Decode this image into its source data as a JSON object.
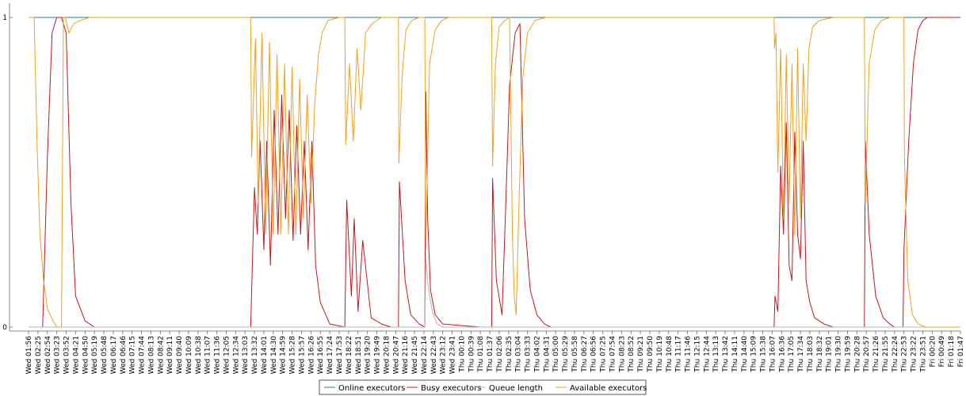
{
  "chart_data": {
    "type": "line",
    "title": "",
    "xlabel": "",
    "ylabel": "",
    "ylim": [
      0,
      1
    ],
    "yticks": [
      "0",
      "1"
    ],
    "grid": false,
    "legend_position": "bottom-center",
    "x_ticks": [
      "Wed 01:56",
      "Wed 02:25",
      "Wed 02:54",
      "Wed 03:23",
      "Wed 03:52",
      "Wed 04:21",
      "Wed 04:50",
      "Wed 05:19",
      "Wed 05:48",
      "Wed 06:17",
      "Wed 06:46",
      "Wed 07:15",
      "Wed 07:44",
      "Wed 08:13",
      "Wed 08:42",
      "Wed 09:11",
      "Wed 09:40",
      "Wed 10:09",
      "Wed 10:38",
      "Wed 11:07",
      "Wed 11:36",
      "Wed 12:05",
      "Wed 12:34",
      "Wed 13:03",
      "Wed 13:32",
      "Wed 14:01",
      "Wed 14:30",
      "Wed 14:59",
      "Wed 15:28",
      "Wed 15:57",
      "Wed 16:26",
      "Wed 16:55",
      "Wed 17:24",
      "Wed 17:53",
      "Wed 18:22",
      "Wed 18:51",
      "Wed 19:20",
      "Wed 19:49",
      "Wed 20:18",
      "Wed 20:47",
      "Wed 21:16",
      "Wed 21:45",
      "Wed 22:14",
      "Wed 22:43",
      "Wed 23:12",
      "Wed 23:41",
      "Thu 00:10",
      "Thu 00:39",
      "Thu 01:08",
      "Thu 01:37",
      "Thu 02:06",
      "Thu 02:35",
      "Thu 03:04",
      "Thu 03:33",
      "Thu 04:02",
      "Thu 04:31",
      "Thu 05:00",
      "Thu 05:29",
      "Thu 05:58",
      "Thu 06:27",
      "Thu 06:56",
      "Thu 07:25",
      "Thu 07:54",
      "Thu 08:23",
      "Thu 08:52",
      "Thu 09:21",
      "Thu 09:50",
      "Thu 10:19",
      "Thu 10:48",
      "Thu 11:17",
      "Thu 11:46",
      "Thu 12:15",
      "Thu 12:44",
      "Thu 13:13",
      "Thu 13:42",
      "Thu 14:11",
      "Thu 14:40",
      "Thu 15:09",
      "Thu 15:38",
      "Thu 16:07",
      "Thu 16:36",
      "Thu 17:05",
      "Thu 17:34",
      "Thu 18:03",
      "Thu 18:32",
      "Thu 19:01",
      "Thu 19:30",
      "Thu 19:59",
      "Thu 20:28",
      "Thu 20:57",
      "Thu 21:26",
      "Thu 21:55",
      "Thu 22:24",
      "Thu 22:53",
      "Thu 23:22",
      "Thu 23:51",
      "Fri 00:20",
      "Fri 00:49",
      "Fri 01:18",
      "Fri 01:47"
    ],
    "series": [
      {
        "name": "Online executors",
        "color": "#2a7a8a",
        "x": [
          0,
          99
        ],
        "values": [
          1,
          1
        ]
      },
      {
        "name": "Busy executors",
        "color": "#c0171f",
        "x": [
          0,
          1.5,
          2.0,
          2.5,
          3,
          3.5,
          4.0,
          4.5,
          5,
          6,
          7,
          12,
          23.6,
          24.0,
          24.3,
          24.6,
          25.0,
          25.3,
          25.7,
          26.1,
          26.5,
          26.9,
          27.3,
          27.7,
          28.1,
          28.5,
          28.9,
          29.3,
          29.7,
          30.1,
          30.5,
          31.0,
          32,
          33.6,
          33.8,
          34.3,
          34.6,
          35.0,
          35.5,
          36.4,
          37.5,
          38.5,
          39.3,
          39.4,
          40.0,
          40.6,
          41.5,
          42.1,
          42.2,
          42.4,
          42.7,
          43.2,
          44,
          48,
          49.2,
          49.3,
          49.7,
          50.3,
          50.7,
          51.1,
          51.7,
          52.2,
          52.7,
          53.3,
          54.0,
          54.8,
          55.5,
          57,
          79.2,
          79.3,
          79.6,
          79.9,
          80.2,
          80.5,
          80.8,
          81.1,
          81.4,
          81.7,
          82.0,
          82.3,
          82.6,
          83.0,
          83.5,
          84.5,
          85.5,
          88.8,
          88.9,
          89.3,
          90.0,
          90.8,
          91.5,
          92,
          92.9,
          93.0,
          93.5,
          94.0,
          94.5,
          95.0,
          95.5,
          96,
          99
        ],
        "values": [
          0,
          0,
          0.55,
          0.95,
          1,
          1,
          0.95,
          0.4,
          0.1,
          0.02,
          0,
          0,
          0,
          0.45,
          0.3,
          0.6,
          0.25,
          0.6,
          0.2,
          0.7,
          0.3,
          0.75,
          0.35,
          0.7,
          0.28,
          0.65,
          0.3,
          0.6,
          0.25,
          0.6,
          0.2,
          0.08,
          0.01,
          0,
          0.41,
          0.1,
          0.35,
          0.05,
          0.28,
          0.03,
          0.01,
          0,
          0,
          0.47,
          0.15,
          0.04,
          0.01,
          0,
          0.76,
          0.35,
          0.12,
          0.04,
          0.01,
          0,
          0,
          0.48,
          0.15,
          0.04,
          0.4,
          0.78,
          0.95,
          0.98,
          0.35,
          0.12,
          0.04,
          0.01,
          0,
          0,
          0,
          0.1,
          0.05,
          0.52,
          0.3,
          0.66,
          0.2,
          0.15,
          0.63,
          0.3,
          0.22,
          0.6,
          0.15,
          0.08,
          0.03,
          0.01,
          0,
          0,
          0.6,
          0.3,
          0.1,
          0.03,
          0.01,
          0,
          0,
          0.25,
          0.6,
          0.85,
          0.96,
          0.99,
          1,
          1,
          1
        ]
      },
      {
        "name": "Queue length",
        "color": "#b4b4b4",
        "x": [
          0,
          42.1,
          42.2,
          42.5,
          42.9,
          43.4,
          44,
          99
        ],
        "values": [
          0,
          0,
          0.22,
          0.12,
          0.05,
          0.01,
          0,
          0
        ]
      },
      {
        "name": "Available executors",
        "color": "#f0a21c",
        "x": [
          0,
          0.6,
          0.9,
          1.2,
          1.6,
          2.0,
          2.6,
          3,
          3.5,
          3.7,
          3.9,
          4.3,
          4.8,
          5.5,
          6.5,
          7,
          23.6,
          23.7,
          24.1,
          24.4,
          24.8,
          25.2,
          25.6,
          26.0,
          26.4,
          26.8,
          27.2,
          27.6,
          28.0,
          28.4,
          28.8,
          29.2,
          29.6,
          30.0,
          30.4,
          30.8,
          31.2,
          31.8,
          33,
          33.6,
          33.7,
          34.1,
          34.5,
          34.9,
          35.3,
          35.8,
          36.5,
          37.5,
          38.5,
          39.3,
          39.35,
          39.7,
          40.1,
          40.7,
          41.5,
          42.1,
          42.2,
          42.6,
          43.2,
          43.9,
          44.6,
          46,
          49.2,
          49.3,
          49.6,
          50.0,
          50.6,
          51.1,
          51.4,
          51.6,
          51.8,
          52.1,
          52.5,
          53.0,
          53.8,
          55,
          79.2,
          79.25,
          79.4,
          79.6,
          79.9,
          80.2,
          80.5,
          80.8,
          81.1,
          81.4,
          81.7,
          82.0,
          82.3,
          82.6,
          82.9,
          83.3,
          84,
          85.5,
          88.8,
          88.9,
          89.3,
          89.9,
          90.6,
          91.5,
          92.5,
          93.0,
          93.05,
          93.4,
          93.9,
          94.5,
          95.3,
          96.2,
          97,
          99
        ],
        "values": [
          1,
          1,
          0.6,
          0.3,
          0.15,
          0.06,
          0.02,
          0,
          0,
          1,
          1,
          0.95,
          0.98,
          0.99,
          1,
          1,
          1,
          0.55,
          0.93,
          0.4,
          0.95,
          0.3,
          0.92,
          0.3,
          0.88,
          0.3,
          0.85,
          0.3,
          0.84,
          0.3,
          0.8,
          0.35,
          0.75,
          0.4,
          0.72,
          0.88,
          0.95,
          0.99,
          1,
          1,
          0.59,
          0.85,
          0.6,
          0.9,
          0.7,
          0.95,
          0.98,
          1,
          1,
          1,
          0.53,
          0.82,
          0.96,
          0.99,
          1,
          1,
          0.25,
          0.85,
          0.96,
          0.99,
          1,
          1,
          1,
          0.52,
          0.85,
          0.97,
          0.99,
          1,
          0.3,
          0.1,
          0.04,
          0.4,
          0.8,
          0.95,
          0.99,
          1,
          1,
          0.9,
          0.95,
          0.5,
          0.9,
          0.35,
          0.88,
          0.4,
          0.85,
          0.3,
          0.9,
          0.35,
          0.85,
          0.6,
          0.9,
          0.97,
          0.99,
          1,
          1,
          0.4,
          0.85,
          0.96,
          0.99,
          1,
          1,
          1,
          0.55,
          0.15,
          0.04,
          0.01,
          0,
          0,
          0,
          0
        ]
      }
    ]
  }
}
